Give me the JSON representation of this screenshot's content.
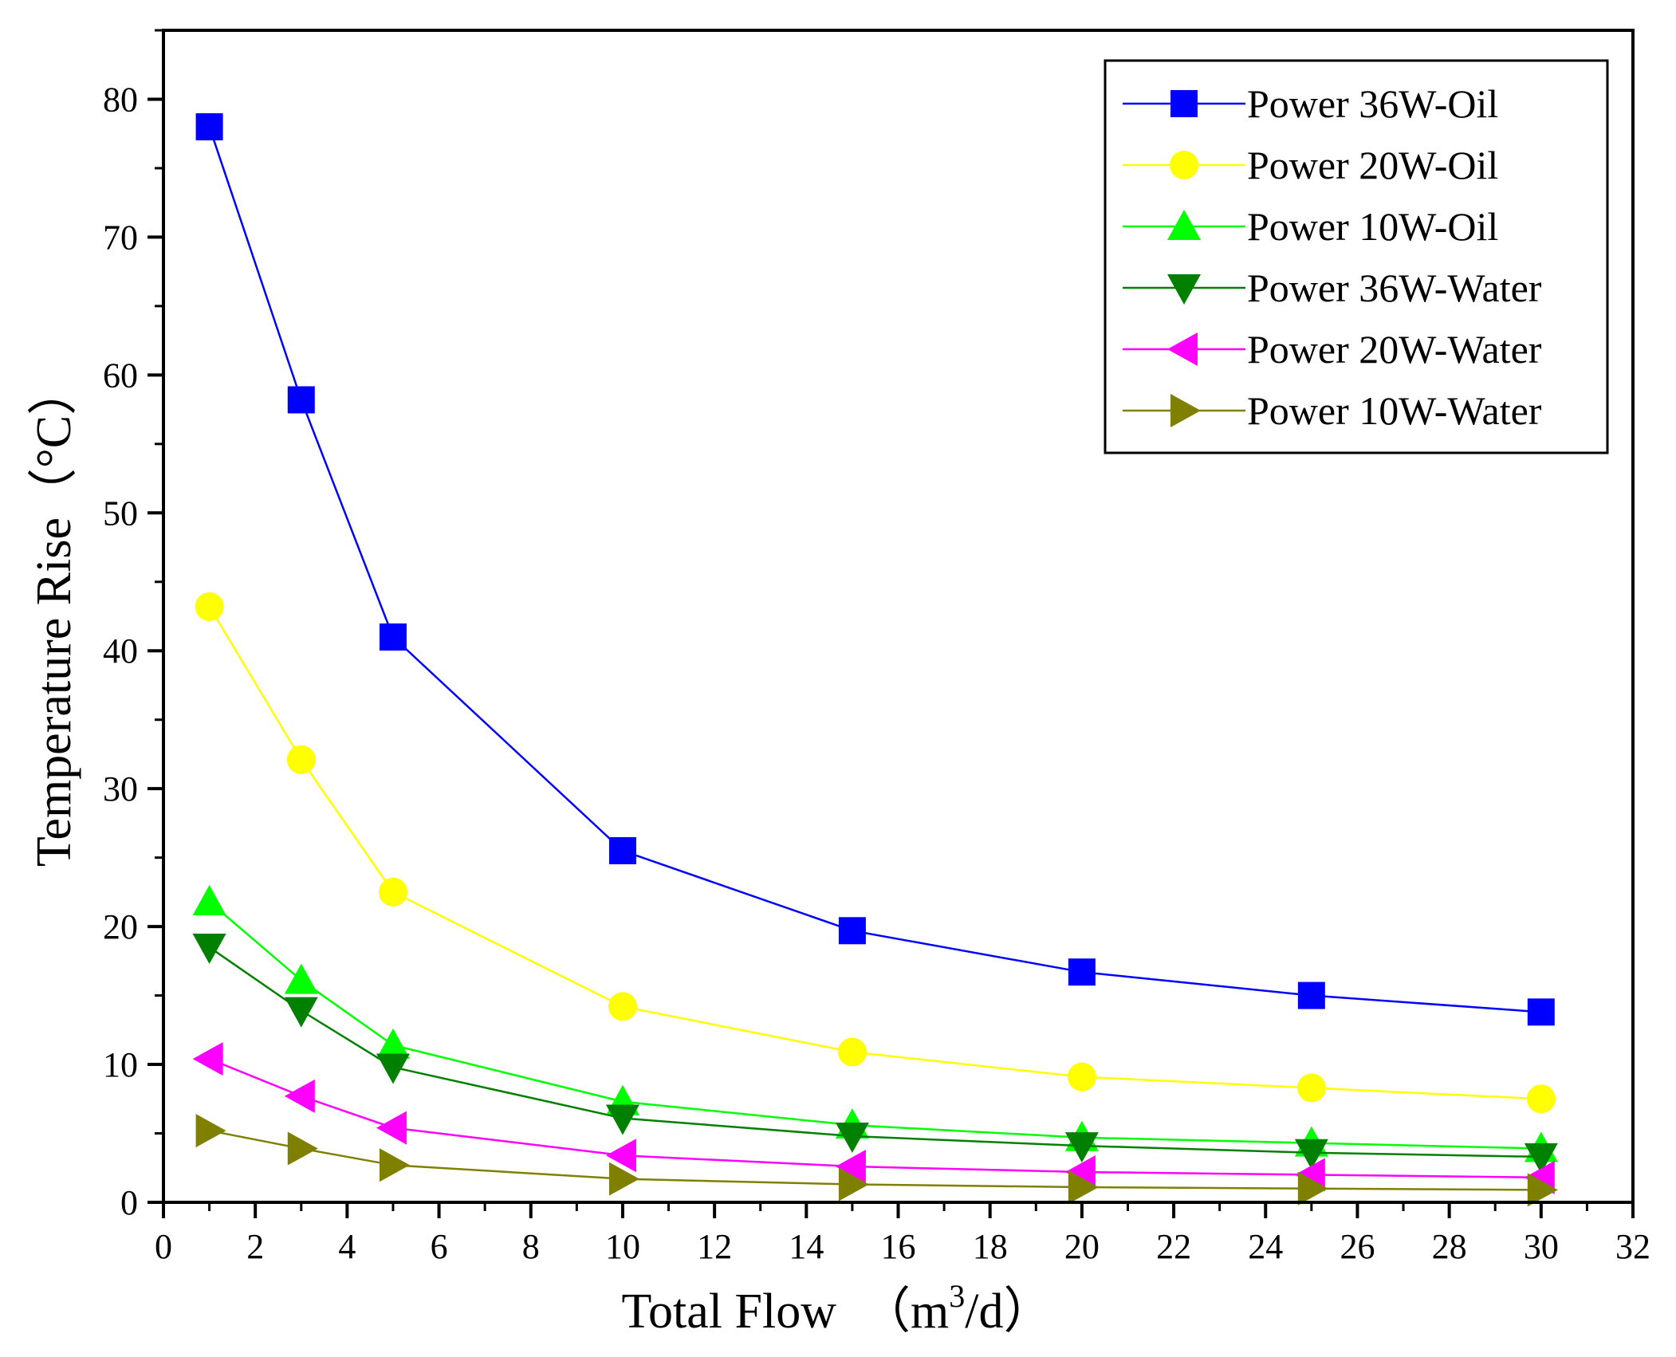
{
  "chart_data": {
    "type": "line",
    "title": "",
    "x": [
      1,
      3,
      5,
      10,
      15,
      20,
      25,
      30
    ],
    "xlim": [
      0,
      32
    ],
    "ylim": [
      0,
      85
    ],
    "xticks": [
      0,
      2,
      4,
      6,
      8,
      10,
      12,
      14,
      16,
      18,
      20,
      22,
      24,
      26,
      28,
      30,
      32
    ],
    "yticks": [
      0,
      10,
      20,
      30,
      40,
      50,
      60,
      70,
      80
    ],
    "xlabel_main": "Total Flow　（m",
    "xlabel_sup": "3",
    "xlabel_tail": "/d）",
    "ylabel": "Temperature Rise（°C）",
    "legend_position": "top-right",
    "grid": false,
    "series": [
      {
        "name": "Power 36W-Oil",
        "color": "#0000ff",
        "marker": "square",
        "values": [
          78.0,
          58.2,
          41.0,
          25.5,
          19.7,
          16.7,
          15.0,
          13.8
        ]
      },
      {
        "name": "Power 20W-Oil",
        "color": "#ffff00",
        "marker": "circle",
        "values": [
          43.2,
          32.1,
          22.5,
          14.2,
          10.9,
          9.1,
          8.3,
          7.5
        ]
      },
      {
        "name": "Power 10W-Oil",
        "color": "#00ff00",
        "marker": "triangle-up",
        "values": [
          21.8,
          16.1,
          11.4,
          7.3,
          5.6,
          4.7,
          4.3,
          3.9
        ]
      },
      {
        "name": "Power 36W-Water",
        "color": "#008000",
        "marker": "triangle-down",
        "values": [
          18.5,
          13.9,
          9.8,
          6.1,
          4.8,
          4.1,
          3.6,
          3.3
        ]
      },
      {
        "name": "Power 20W-Water",
        "color": "#ff00ff",
        "marker": "triangle-left",
        "values": [
          10.4,
          7.7,
          5.4,
          3.4,
          2.6,
          2.2,
          2.0,
          1.8
        ]
      },
      {
        "name": "Power 10W-Water",
        "color": "#808000",
        "marker": "triangle-right",
        "values": [
          5.2,
          3.9,
          2.7,
          1.7,
          1.3,
          1.1,
          1.0,
          0.9
        ]
      }
    ]
  }
}
